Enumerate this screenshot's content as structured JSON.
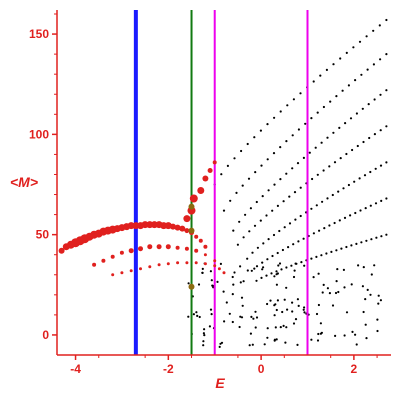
{
  "chart_data": {
    "type": "scatter",
    "xlabel": "E",
    "ylabel": "<M>",
    "xlim": [
      -4.4,
      2.8
    ],
    "ylim": [
      -10,
      162
    ],
    "x_ticks": [
      -4,
      -2,
      0,
      2
    ],
    "y_ticks": [
      0,
      50,
      100,
      150
    ],
    "grid": false,
    "vertical_lines": [
      {
        "x": -2.7,
        "color": "#1a1aff",
        "width": "thick"
      },
      {
        "x": -1.5,
        "color": "#117a11",
        "width": "thin"
      },
      {
        "x": -1.0,
        "color": "#ee00ee",
        "width": "thin"
      },
      {
        "x": 1.0,
        "color": "#ee00ee",
        "width": "thin"
      }
    ],
    "series": [
      {
        "color": "#e0201e",
        "marker": "circle-large",
        "description_points": [
          [
            -4.3,
            42,
            3
          ],
          [
            -4.2,
            44,
            3.5
          ],
          [
            -4.1,
            45,
            4
          ],
          [
            -4.0,
            46,
            4.5
          ],
          [
            -3.9,
            47,
            4.5
          ],
          [
            -3.8,
            48,
            4.5
          ],
          [
            -3.7,
            49,
            4
          ],
          [
            -3.6,
            50,
            4
          ],
          [
            -3.5,
            50.5,
            4
          ],
          [
            -3.4,
            51.5,
            4
          ],
          [
            -3.3,
            52,
            4
          ],
          [
            -3.2,
            52.5,
            4
          ],
          [
            -3.1,
            53,
            3.5
          ],
          [
            -3.0,
            53.5,
            3.5
          ],
          [
            -2.9,
            54,
            3.5
          ],
          [
            -2.8,
            54.5,
            3.5
          ],
          [
            -2.7,
            54.5,
            3.5
          ],
          [
            -2.6,
            54.5,
            3.5
          ],
          [
            -2.5,
            55,
            3.5
          ],
          [
            -2.4,
            55,
            3.5
          ],
          [
            -2.3,
            55,
            3.5
          ],
          [
            -2.2,
            55,
            3.5
          ],
          [
            -2.1,
            54.5,
            3.5
          ],
          [
            -2.0,
            54.5,
            3.5
          ],
          [
            -1.9,
            54,
            3
          ],
          [
            -1.8,
            53.5,
            3
          ],
          [
            -1.7,
            53,
            3
          ],
          [
            -1.6,
            52,
            2.5
          ],
          [
            -1.5,
            51,
            2.5
          ],
          [
            -1.4,
            49,
            2
          ],
          [
            -1.3,
            47,
            2
          ],
          [
            -1.2,
            44,
            2
          ],
          [
            -1.6,
            58,
            3.5
          ],
          [
            -1.5,
            62,
            4
          ],
          [
            -1.45,
            68,
            4
          ],
          [
            -1.3,
            72,
            3.5
          ],
          [
            -1.2,
            78,
            3
          ],
          [
            -1.1,
            82,
            2.5
          ],
          [
            -1.0,
            86,
            2
          ]
        ]
      },
      {
        "color": "#e0201e",
        "marker": "circle-small",
        "description_points": [
          [
            -3.6,
            35,
            2
          ],
          [
            -3.4,
            37,
            2
          ],
          [
            -3.2,
            39,
            2
          ],
          [
            -3.0,
            41,
            2
          ],
          [
            -2.8,
            42,
            2.5
          ],
          [
            -2.6,
            43,
            2.5
          ],
          [
            -2.4,
            44,
            2.5
          ],
          [
            -2.2,
            44,
            2.5
          ],
          [
            -2.0,
            44,
            2.5
          ],
          [
            -1.8,
            43.5,
            2
          ],
          [
            -1.6,
            43,
            2
          ],
          [
            -1.4,
            42,
            2
          ],
          [
            -1.2,
            40,
            1.5
          ],
          [
            -1.0,
            37,
            1.5
          ],
          [
            -3.2,
            30,
            1.5
          ],
          [
            -3.0,
            31,
            1.5
          ],
          [
            -2.8,
            32,
            1.5
          ],
          [
            -2.6,
            33,
            1.5
          ],
          [
            -2.4,
            34,
            1.5
          ],
          [
            -2.2,
            35,
            1.5
          ],
          [
            -2.0,
            35.5,
            1.5
          ],
          [
            -1.8,
            36,
            1.5
          ],
          [
            -1.6,
            36,
            1.5
          ],
          [
            -1.4,
            36,
            1.5
          ],
          [
            -1.2,
            35.5,
            1.5
          ],
          [
            -1.0,
            34.5,
            1.5
          ],
          [
            -0.9,
            33,
            1.5
          ],
          [
            -0.8,
            31,
            1.5
          ]
        ]
      },
      {
        "color": "#8b6a10",
        "marker": "circle-medium",
        "description_points": [
          [
            -1.5,
            64,
            3
          ],
          [
            -1.5,
            52,
            3
          ],
          [
            -1.5,
            24,
            3
          ]
        ]
      },
      {
        "color": "#000000",
        "marker": "dot",
        "description_curves": [
          {
            "from": [
              -1.0,
              75
            ],
            "to": [
              2.7,
              157
            ]
          },
          {
            "from": [
              -0.8,
              62
            ],
            "to": [
              2.7,
              140
            ]
          },
          {
            "from": [
              -0.6,
              52
            ],
            "to": [
              2.7,
              122
            ]
          },
          {
            "from": [
              -0.5,
              45
            ],
            "to": [
              2.7,
              104
            ]
          },
          {
            "from": [
              -0.3,
              38
            ],
            "to": [
              2.7,
              86
            ]
          },
          {
            "from": [
              -0.2,
              32
            ],
            "to": [
              2.7,
              68
            ]
          },
          {
            "from": [
              -0.1,
              27
            ],
            "to": [
              2.7,
              50
            ]
          }
        ]
      }
    ]
  }
}
